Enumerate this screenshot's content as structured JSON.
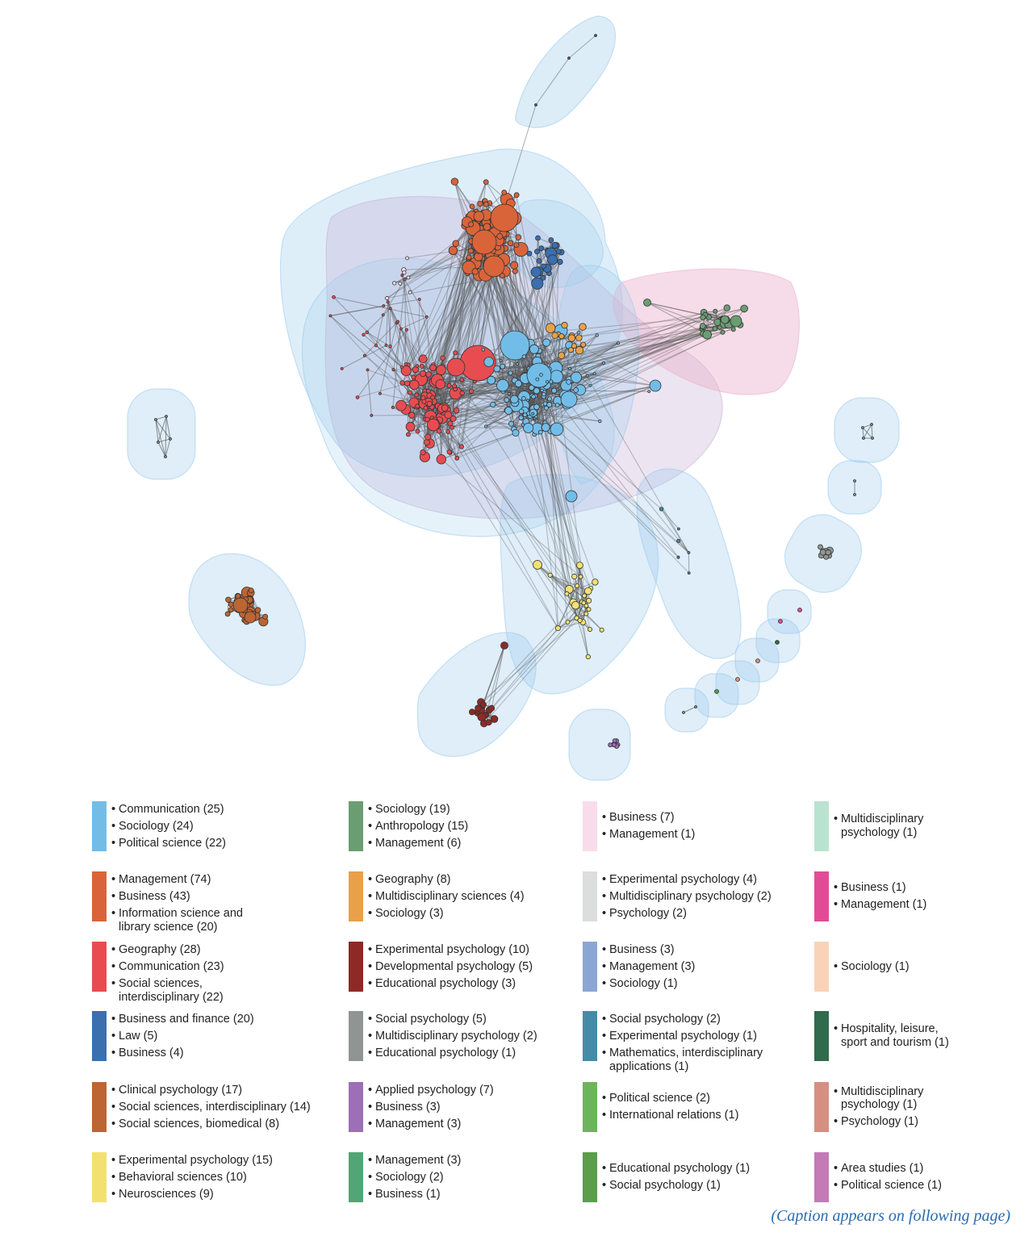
{
  "legend": [
    {
      "color": "#72BDE8",
      "items": [
        "Communication (25)",
        "Sociology (24)",
        "Political science (22)"
      ]
    },
    {
      "color": "#D9643A",
      "items": [
        "Management (74)",
        "Business (43)",
        "Information science and\nlibrary science (20)"
      ]
    },
    {
      "color": "#E84C50",
      "items": [
        "Geography (28)",
        "Communication (23)",
        "Social sciences,\ninterdisciplinary (22)"
      ]
    },
    {
      "color": "#3A6FB0",
      "items": [
        "Business and finance (20)",
        "Law (5)",
        "Business (4)"
      ]
    },
    {
      "color": "#BD6533",
      "items": [
        "Clinical psychology (17)",
        "Social sciences, interdisciplinary (14)",
        "Social sciences, biomedical (8)"
      ]
    },
    {
      "color": "#F2E171",
      "items": [
        "Experimental psychology (15)",
        "Behavioral sciences (10)",
        "Neurosciences (9)"
      ]
    },
    {
      "color": "#6B9D73",
      "items": [
        "Sociology (19)",
        "Anthropology (15)",
        "Management (6)"
      ]
    },
    {
      "color": "#E8A14A",
      "items": [
        "Geography (8)",
        "Multidisciplinary sciences (4)",
        "Sociology (3)"
      ]
    },
    {
      "color": "#8E2A25",
      "items": [
        "Experimental psychology (10)",
        "Developmental psychology (5)",
        "Educational psychology (3)"
      ]
    },
    {
      "color": "#909492",
      "items": [
        "Social psychology (5)",
        "Multidisciplinary psychology (2)",
        "Educational psychology (1)"
      ]
    },
    {
      "color": "#9C6FB6",
      "items": [
        "Applied psychology (7)",
        "Business (3)",
        "Management (3)"
      ]
    },
    {
      "color": "#52A575",
      "items": [
        "Management (3)",
        "Sociology (2)",
        "Business (1)"
      ]
    },
    {
      "color": "#F9DCEB",
      "items": [
        "Business (7)",
        "Management (1)"
      ]
    },
    {
      "color": "#DBDEDC",
      "items": [
        "Experimental psychology (4)",
        "Multidisciplinary psychology (2)",
        "Psychology (2)"
      ]
    },
    {
      "color": "#8BA6D3",
      "items": [
        "Business (3)",
        "Management (3)",
        "Sociology (1)"
      ]
    },
    {
      "color": "#468BA6",
      "items": [
        "Social psychology (2)",
        "Experimental psychology (1)",
        "Mathematics, interdisciplinary\napplications (1)"
      ]
    },
    {
      "color": "#6DB55C",
      "items": [
        "Political science (2)",
        "International relations (1)"
      ]
    },
    {
      "color": "#5A9E4B",
      "items": [
        "Educational psychology (1)",
        "Social psychology (1)"
      ]
    },
    {
      "color": "#B9E3D1",
      "items": [
        "Multidisciplinary\npsychology (1)"
      ]
    },
    {
      "color": "#E24C96",
      "items": [
        "Business (1)",
        "Management (1)"
      ]
    },
    {
      "color": "#F9D3B8",
      "items": [
        "Sociology (1)"
      ]
    },
    {
      "color": "#2F6B4C",
      "items": [
        "Hospitality, leisure,\nsport and tourism (1)"
      ]
    },
    {
      "color": "#D78F81",
      "items": [
        "Multidisciplinary\npsychology (1)",
        "Psychology (1)"
      ]
    },
    {
      "color": "#C47BB5",
      "items": [
        "Area studies (1)",
        "Political science (1)"
      ]
    }
  ],
  "caption_note": "(Caption appears on following page)"
}
